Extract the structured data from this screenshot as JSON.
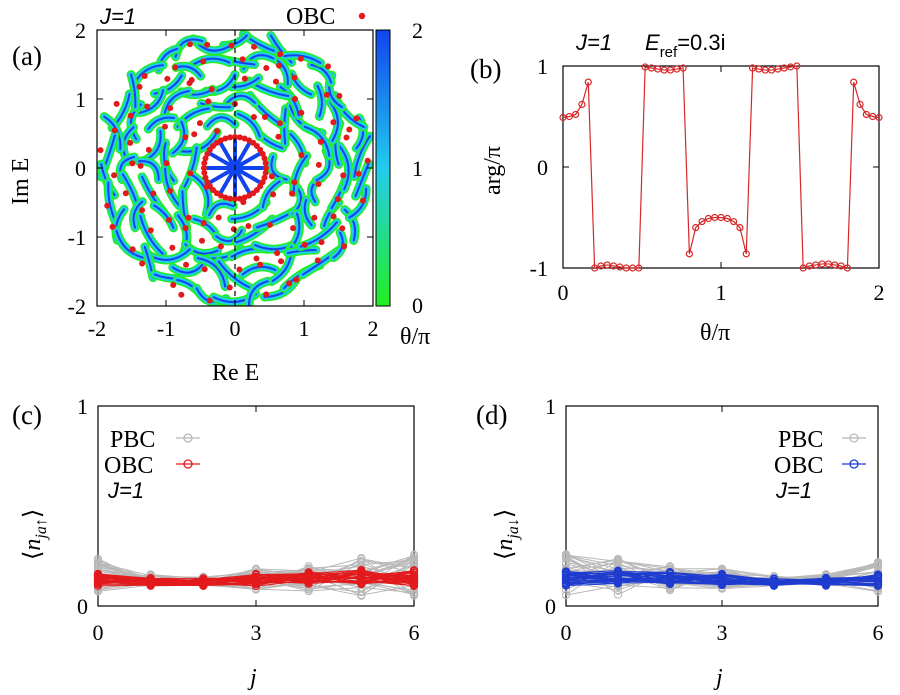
{
  "figure": {
    "panel_labels": [
      "(a)",
      "(b)",
      "(c)",
      "(d)"
    ]
  },
  "chart_data": [
    {
      "panel": "(a)",
      "type": "scatter",
      "title": "J=1",
      "xlabel": "Re E",
      "ylabel": "Im E",
      "xlim": [
        -2,
        2
      ],
      "ylim": [
        -2,
        2
      ],
      "x_ticks": [
        "-2",
        "-1",
        "0",
        "1",
        "2"
      ],
      "y_ticks": [
        "-2",
        "-1",
        "0",
        "1",
        "2"
      ],
      "reference_lines": [
        "Re E = 0 (dashed)"
      ],
      "legend": "top-right",
      "series": [
        {
          "name": "OBC",
          "color": "#e31a1c",
          "marker": "dot",
          "note_points": "rings of OBC eigenvalues; a circle of radius about 0.45 centred at the origin"
        },
        {
          "name": "PBC (colored by θ)",
          "colormap": [
            "#22ee22",
            "#22ccee",
            "#1144ee"
          ],
          "description": "curved PBC spectral arcs filling disk of radius about 2"
        }
      ],
      "colorbar": {
        "label": "θ/π",
        "ticks": [
          "0",
          "1",
          "2"
        ],
        "range": [
          0,
          2
        ],
        "colors": [
          "#22ee22",
          "#22ccee",
          "#1144ee"
        ]
      }
    },
    {
      "panel": "(b)",
      "type": "line",
      "title_parts": {
        "J": "J=1",
        "eref_sym": "E",
        "eref_sub": "ref",
        "eref_val": "=0.3i"
      },
      "xlabel": "θ/π",
      "ylabel": "arg/π",
      "xlim": [
        0,
        2
      ],
      "ylim": [
        -1,
        1
      ],
      "x_ticks": [
        "0",
        "1",
        "2"
      ],
      "y_ticks": [
        "-1",
        "0",
        "1"
      ],
      "series": [
        {
          "name": "",
          "color": "#d62728",
          "marker": "open-circle",
          "x": [
            0,
            0.04,
            0.08,
            0.12,
            0.16,
            0.2,
            0.24,
            0.28,
            0.32,
            0.36,
            0.4,
            0.44,
            0.48,
            0.52,
            0.56,
            0.6,
            0.64,
            0.68,
            0.72,
            0.76,
            0.8,
            0.84,
            0.88,
            0.92,
            0.96,
            1.0,
            1.04,
            1.08,
            1.12,
            1.16,
            1.2,
            1.24,
            1.28,
            1.32,
            1.36,
            1.4,
            1.44,
            1.48,
            1.52,
            1.56,
            1.6,
            1.64,
            1.68,
            1.72,
            1.76,
            1.8,
            1.84,
            1.88,
            1.92,
            1.96,
            2.0
          ],
          "y": [
            0.49,
            0.5,
            0.52,
            0.62,
            0.84,
            -1.0,
            -0.98,
            -0.97,
            -0.98,
            -0.99,
            -1.0,
            -1.0,
            -1.0,
            0.99,
            0.98,
            0.97,
            0.96,
            0.96,
            0.97,
            0.98,
            -0.86,
            -0.6,
            -0.54,
            -0.51,
            -0.5,
            -0.5,
            -0.51,
            -0.54,
            -0.6,
            -0.86,
            0.98,
            0.97,
            0.96,
            0.96,
            0.97,
            0.98,
            0.99,
            1.0,
            -1.0,
            -0.98,
            -0.97,
            -0.96,
            -0.96,
            -0.97,
            -0.98,
            -1.0,
            0.84,
            0.62,
            0.52,
            0.5,
            0.49
          ]
        }
      ]
    },
    {
      "panel": "(c)",
      "type": "line",
      "xlabel": "j",
      "ylabel_sym": "n",
      "ylabel_sub": "ja↑",
      "xlim": [
        0,
        6
      ],
      "ylim": [
        0,
        1
      ],
      "x_ticks": [
        "0",
        "3",
        "6"
      ],
      "y_ticks": [
        "0",
        "1"
      ],
      "legend": "top-left",
      "series": [
        {
          "name": "PBC",
          "color": "#b8b8b8",
          "marker": "open-circle",
          "x": [
            0,
            1,
            2,
            3,
            4,
            5,
            6
          ],
          "y_band_low": [
            0.07,
            0.1,
            0.1,
            0.08,
            0.07,
            0.04,
            0.05
          ],
          "y_band_high": [
            0.24,
            0.16,
            0.15,
            0.19,
            0.2,
            0.24,
            0.26
          ]
        },
        {
          "name": "OBC",
          "color": "#e31a1c",
          "marker": "open-circle",
          "x": [
            0,
            1,
            2,
            3,
            4,
            5,
            6
          ],
          "y_band_low": [
            0.1,
            0.1,
            0.1,
            0.1,
            0.11,
            0.11,
            0.1
          ],
          "y_band_high": [
            0.16,
            0.14,
            0.14,
            0.16,
            0.17,
            0.18,
            0.18
          ]
        }
      ],
      "annotation": "J=1"
    },
    {
      "panel": "(d)",
      "type": "line",
      "xlabel": "j",
      "ylabel_sym": "n",
      "ylabel_sub": "ja↓",
      "xlim": [
        0,
        6
      ],
      "ylim": [
        0,
        1
      ],
      "x_ticks": [
        "0",
        "3",
        "6"
      ],
      "y_ticks": [
        "0",
        "1"
      ],
      "legend": "top-right",
      "series": [
        {
          "name": "PBC",
          "color": "#b8b8b8",
          "marker": "open-circle",
          "x": [
            0,
            1,
            2,
            3,
            4,
            5,
            6
          ],
          "y_band_low": [
            0.05,
            0.04,
            0.07,
            0.08,
            0.1,
            0.1,
            0.07
          ],
          "y_band_high": [
            0.26,
            0.24,
            0.2,
            0.19,
            0.15,
            0.16,
            0.24
          ]
        },
        {
          "name": "OBC",
          "color": "#1f3ccf",
          "marker": "open-circle",
          "x": [
            0,
            1,
            2,
            3,
            4,
            5,
            6
          ],
          "y_band_low": [
            0.1,
            0.11,
            0.11,
            0.1,
            0.1,
            0.1,
            0.1
          ],
          "y_band_high": [
            0.18,
            0.18,
            0.17,
            0.16,
            0.14,
            0.14,
            0.16
          ]
        }
      ],
      "annotation": "J=1"
    }
  ]
}
